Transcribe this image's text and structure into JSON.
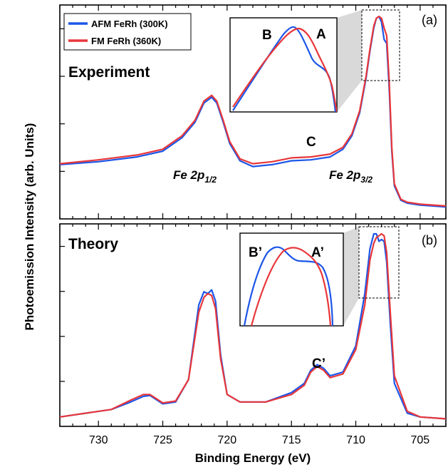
{
  "chart_data": [
    {
      "type": "line",
      "panel_id": "(a)",
      "title": "Experiment",
      "xlabel": "Binding Energy (eV)",
      "ylabel": "Photoemission Intensity (arb. Units)",
      "xlim": [
        733,
        703
      ],
      "ylim": [
        0,
        1.03
      ],
      "x_ticks": [
        730,
        725,
        720,
        715,
        710,
        705
      ],
      "legend": {
        "placement": "top-left"
      },
      "series": [
        {
          "name": "AFM FeRh (300K)",
          "color": "#1c56e8",
          "x": [
            733,
            730,
            727,
            725,
            723.5,
            722.5,
            721.8,
            721.2,
            720.8,
            720.3,
            719.8,
            719.0,
            718.0,
            716.5,
            715.0,
            713.5,
            712.0,
            711.0,
            710.3,
            709.7,
            709.2,
            708.9,
            708.6,
            708.4,
            708.2,
            708.0,
            707.8,
            707.6,
            707.4,
            707.2,
            707.0,
            706.5,
            706.0,
            705.0,
            704.0,
            703.0
          ],
          "y": [
            0.23,
            0.245,
            0.27,
            0.3,
            0.37,
            0.45,
            0.55,
            0.58,
            0.55,
            0.45,
            0.34,
            0.25,
            0.22,
            0.23,
            0.25,
            0.255,
            0.27,
            0.31,
            0.38,
            0.5,
            0.68,
            0.82,
            0.94,
            0.99,
            1.0,
            0.97,
            0.88,
            0.86,
            0.62,
            0.3,
            0.12,
            0.045,
            0.03,
            0.02,
            0.015,
            0.01
          ]
        },
        {
          "name": "FM FeRh (360K)",
          "color": "#e8373a",
          "x": [
            733,
            730,
            727,
            725,
            723.5,
            722.5,
            721.8,
            721.2,
            720.8,
            720.3,
            719.8,
            719.0,
            718.0,
            716.5,
            715.0,
            713.5,
            712.0,
            711.0,
            710.3,
            709.7,
            709.2,
            708.9,
            708.6,
            708.4,
            708.2,
            708.0,
            707.8,
            707.6,
            707.4,
            707.2,
            707.0,
            706.5,
            706.0,
            705.0,
            704.0,
            703.0
          ],
          "y": [
            0.235,
            0.255,
            0.28,
            0.31,
            0.38,
            0.46,
            0.56,
            0.59,
            0.56,
            0.46,
            0.35,
            0.26,
            0.235,
            0.245,
            0.265,
            0.27,
            0.285,
            0.32,
            0.39,
            0.51,
            0.69,
            0.83,
            0.95,
            0.99,
            1.0,
            0.99,
            0.94,
            0.9,
            0.66,
            0.32,
            0.13,
            0.05,
            0.035,
            0.025,
            0.02,
            0.015
          ]
        }
      ],
      "annotations": [
        "Fe 2p1/2",
        "Fe 2p3/2",
        "C"
      ],
      "inset_labels": [
        "B",
        "A"
      ]
    },
    {
      "type": "line",
      "panel_id": "(b)",
      "title": "Theory",
      "xlabel": "Binding Energy (eV)",
      "ylabel": "Photoemission Intensity (arb. Units)",
      "xlim": [
        733,
        703
      ],
      "ylim": [
        0,
        1.03
      ],
      "x_ticks": [
        730,
        725,
        720,
        715,
        710,
        705
      ],
      "series": [
        {
          "name": "AFM FeRh (300K)",
          "color": "#1c56e8",
          "x": [
            733,
            729,
            727.5,
            726.5,
            726,
            725,
            724,
            723,
            722.2,
            721.8,
            721.5,
            721.2,
            720.9,
            720.5,
            720,
            719,
            717,
            715,
            714,
            713.5,
            713.0,
            712.5,
            712,
            711,
            710,
            709.3,
            708.9,
            708.6,
            708.4,
            708.2,
            708.0,
            707.8,
            707.6,
            707.3,
            707.0,
            706.0,
            705.0,
            703.0
          ],
          "y": [
            0.02,
            0.06,
            0.1,
            0.13,
            0.135,
            0.09,
            0.1,
            0.22,
            0.62,
            0.69,
            0.68,
            0.7,
            0.64,
            0.35,
            0.14,
            0.1,
            0.1,
            0.15,
            0.2,
            0.27,
            0.3,
            0.28,
            0.24,
            0.26,
            0.4,
            0.68,
            0.92,
            1.0,
            1.0,
            0.96,
            0.97,
            0.96,
            0.85,
            0.5,
            0.2,
            0.04,
            0.02,
            0.01
          ]
        },
        {
          "name": "FM FeRh (360K)",
          "color": "#e8373a",
          "x": [
            733,
            729,
            727.5,
            726.5,
            726,
            725,
            724,
            723,
            722.2,
            721.8,
            721.5,
            721.2,
            720.9,
            720.5,
            720,
            719,
            717,
            715,
            714,
            713.5,
            713.0,
            712.5,
            712,
            711,
            710,
            709.3,
            708.9,
            708.6,
            708.4,
            708.2,
            708.0,
            707.8,
            707.6,
            707.3,
            707.0,
            706.0,
            705.0,
            703.0
          ],
          "y": [
            0.02,
            0.06,
            0.11,
            0.14,
            0.14,
            0.095,
            0.105,
            0.22,
            0.58,
            0.66,
            0.68,
            0.67,
            0.6,
            0.33,
            0.14,
            0.1,
            0.1,
            0.14,
            0.19,
            0.26,
            0.29,
            0.27,
            0.23,
            0.25,
            0.38,
            0.62,
            0.86,
            0.95,
            0.98,
            0.99,
            1.0,
            0.99,
            0.9,
            0.56,
            0.24,
            0.05,
            0.02,
            0.01
          ]
        }
      ],
      "annotations": [
        "C’"
      ],
      "inset_labels": [
        "B’",
        "A’"
      ]
    }
  ]
}
